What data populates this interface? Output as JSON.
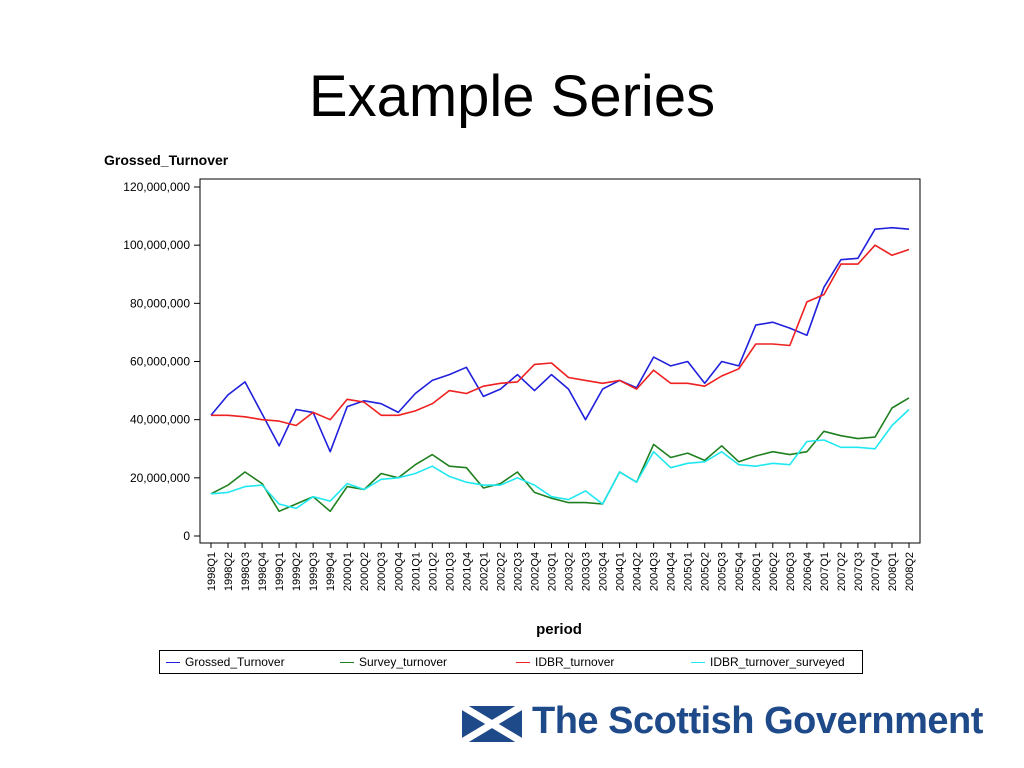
{
  "slide": {
    "title": "Example Series"
  },
  "chart_data": {
    "type": "line",
    "ylabel": "Grossed_Turnover",
    "xlabel": "period",
    "ylim": [
      0,
      120000000
    ],
    "yticks": [
      0,
      20000000,
      40000000,
      60000000,
      80000000,
      100000000,
      120000000
    ],
    "ytick_labels": [
      "0",
      "20,000,000",
      "40,000,000",
      "60,000,000",
      "80,000,000",
      "100,000,000",
      "120,000,000"
    ],
    "categories": [
      "1998Q1",
      "1998Q2",
      "1998Q3",
      "1998Q4",
      "1999Q1",
      "1999Q2",
      "1999Q3",
      "1999Q4",
      "2000Q1",
      "2000Q2",
      "2000Q3",
      "2000Q4",
      "2001Q1",
      "2001Q2",
      "2001Q3",
      "2001Q4",
      "2002Q1",
      "2002Q2",
      "2002Q3",
      "2002Q4",
      "2003Q1",
      "2003Q2",
      "2003Q3",
      "2003Q4",
      "2004Q1",
      "2004Q2",
      "2004Q3",
      "2004Q4",
      "2005Q1",
      "2005Q2",
      "2005Q3",
      "2005Q4",
      "2006Q1",
      "2006Q2",
      "2006Q3",
      "2006Q4",
      "2007Q1",
      "2007Q2",
      "2007Q3",
      "2007Q4",
      "2008Q1",
      "2008Q2"
    ],
    "legend_position": "bottom",
    "grid": false,
    "series": [
      {
        "name": "Grossed_Turnover",
        "color": "#2020dd",
        "values": [
          41500000,
          48500000,
          53000000,
          42000000,
          31000000,
          43500000,
          42500000,
          29000000,
          44500000,
          46500000,
          45500000,
          42500000,
          49000000,
          53500000,
          55500000,
          58000000,
          48000000,
          50500000,
          55500000,
          50000000,
          55500000,
          50500000,
          40000000,
          50500000,
          53500000,
          51000000,
          61500000,
          58500000,
          60000000,
          52500000,
          60000000,
          58500000,
          72500000,
          73500000,
          71500000,
          69000000,
          85500000,
          95000000,
          95500000,
          105500000,
          106000000,
          105500000
        ]
      },
      {
        "name": "Survey_turnover",
        "color": "#208020",
        "values": [
          14500000,
          17500000,
          22000000,
          18000000,
          8500000,
          11000000,
          13500000,
          8500000,
          17000000,
          16000000,
          21500000,
          20000000,
          24500000,
          28000000,
          24000000,
          23500000,
          16500000,
          18000000,
          22000000,
          15000000,
          13000000,
          11500000,
          11500000,
          11000000,
          22000000,
          18500000,
          31500000,
          27000000,
          28500000,
          26000000,
          31000000,
          25500000,
          27500000,
          29000000,
          28000000,
          29000000,
          36000000,
          34500000,
          33500000,
          34000000,
          44000000,
          47500000
        ]
      },
      {
        "name": "IDBR_turnover",
        "color": "#ee2020",
        "values": [
          41500000,
          41500000,
          41000000,
          40000000,
          39500000,
          38000000,
          42500000,
          40000000,
          47000000,
          46000000,
          41500000,
          41500000,
          43000000,
          45500000,
          50000000,
          49000000,
          51500000,
          52500000,
          53000000,
          59000000,
          59500000,
          54500000,
          53500000,
          52500000,
          53500000,
          50500000,
          57000000,
          52500000,
          52500000,
          51500000,
          55000000,
          57500000,
          66000000,
          66000000,
          65500000,
          80500000,
          83000000,
          93500000,
          93500000,
          100000000,
          96500000,
          98500000
        ]
      },
      {
        "name": "IDBR_turnover_surveyed",
        "color": "#20e8f0",
        "values": [
          14500000,
          15000000,
          17000000,
          17500000,
          11000000,
          9500000,
          13500000,
          12000000,
          18000000,
          16000000,
          19500000,
          20000000,
          21500000,
          24000000,
          20500000,
          18500000,
          17500000,
          17500000,
          20000000,
          17500000,
          13500000,
          12500000,
          15500000,
          11000000,
          22000000,
          18500000,
          29000000,
          23500000,
          25000000,
          25500000,
          29000000,
          24500000,
          24000000,
          25000000,
          24500000,
          32500000,
          33000000,
          30500000,
          30500000,
          30000000,
          38000000,
          43500000
        ]
      }
    ]
  },
  "brand": {
    "name": "The Scottish Government"
  }
}
